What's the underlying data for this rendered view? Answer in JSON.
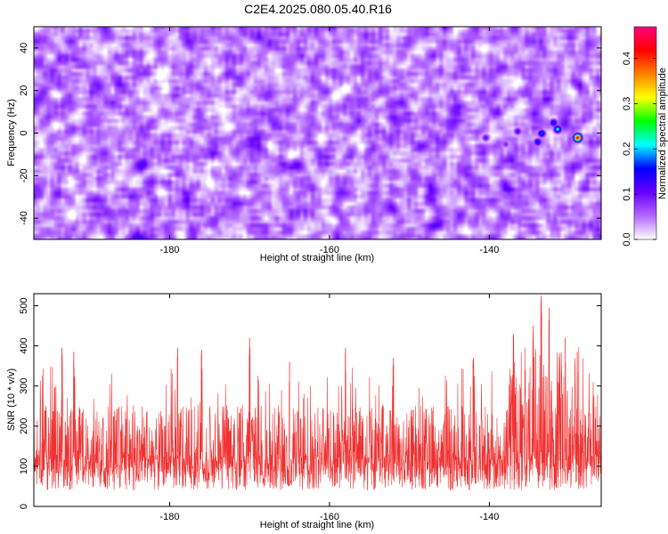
{
  "title": "C2E4.2025.080.05.40.R16",
  "chart_data": [
    {
      "type": "heatmap",
      "xlabel": "Height of straight line (km)",
      "ylabel": "Frequency (Hz)",
      "xlim": [
        -197,
        -126
      ],
      "ylim": [
        -50,
        50
      ],
      "x_ticks": [
        -180,
        -160,
        -140
      ],
      "y_ticks": [
        -40,
        -20,
        0,
        20,
        40
      ],
      "grid": false,
      "colorbar": {
        "label": "Normalized spectral amplitude",
        "range": [
          0.0,
          0.47
        ],
        "ticks": [
          0.0,
          0.1,
          0.2,
          0.3,
          0.4
        ],
        "colormap": [
          "#ffffff",
          "#b366ff",
          "#6600ff",
          "#0000ff",
          "#00ffff",
          "#00ff00",
          "#ffff00",
          "#ff8000",
          "#ff0000",
          "#ff0080"
        ]
      },
      "background_level": 0.06,
      "hotspots": [
        {
          "x": -129.0,
          "y": -2.0,
          "amplitude": 0.44
        },
        {
          "x": -131.5,
          "y": 2.0,
          "amplitude": 0.22
        },
        {
          "x": -133.5,
          "y": 0.0,
          "amplitude": 0.18
        },
        {
          "x": -132.0,
          "y": 5.0,
          "amplitude": 0.17
        },
        {
          "x": -134.0,
          "y": -4.0,
          "amplitude": 0.16
        },
        {
          "x": -136.5,
          "y": 1.0,
          "amplitude": 0.12
        },
        {
          "x": -140.5,
          "y": -2.0,
          "amplitude": 0.11
        },
        {
          "x": -138.0,
          "y": -5.0,
          "amplitude": 0.09
        }
      ]
    },
    {
      "type": "line",
      "xlabel": "Height of straight line (km)",
      "ylabel": "SNR (10 * v/v)",
      "xlim": [
        -197,
        -126
      ],
      "ylim": [
        0,
        530
      ],
      "x_ticks": [
        -180,
        -160,
        -140
      ],
      "y_ticks": [
        0,
        100,
        200,
        300,
        400,
        500
      ],
      "grid": false,
      "color": "#f03030",
      "baseline_mean": 135,
      "typical_range": [
        40,
        300
      ],
      "peaks": [
        {
          "x": -193.5,
          "y": 395
        },
        {
          "x": -192.0,
          "y": 385
        },
        {
          "x": -179.0,
          "y": 395
        },
        {
          "x": -176.0,
          "y": 390
        },
        {
          "x": -170.0,
          "y": 420
        },
        {
          "x": -165.0,
          "y": 360
        },
        {
          "x": -158.0,
          "y": 395
        },
        {
          "x": -152.0,
          "y": 370
        },
        {
          "x": -142.0,
          "y": 370
        },
        {
          "x": -137.0,
          "y": 430
        },
        {
          "x": -134.5,
          "y": 450
        },
        {
          "x": -133.5,
          "y": 525
        },
        {
          "x": -132.5,
          "y": 495
        },
        {
          "x": -130.5,
          "y": 420
        },
        {
          "x": -129.0,
          "y": 385
        }
      ]
    }
  ]
}
